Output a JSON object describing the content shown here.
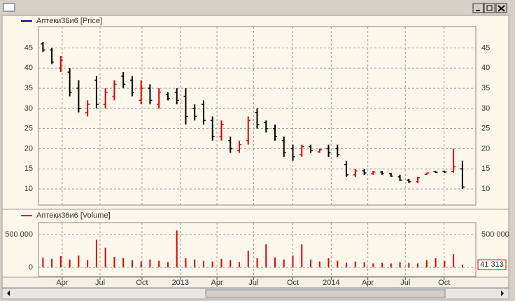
{
  "chart_data": [
    {
      "type": "ohlc",
      "series": [
        {
          "name": "Аптеки36и6 [Price]",
          "color": "#000080",
          "open": [
            46,
            44.5,
            40,
            39,
            35,
            29,
            37,
            31,
            33,
            38,
            37,
            32,
            35,
            31,
            33.5,
            34,
            33,
            30,
            31,
            27,
            23,
            22,
            19.5,
            22,
            29,
            26.5,
            25,
            22,
            20,
            18.5,
            20.5,
            19.2,
            20,
            20,
            16,
            13.5,
            14.5,
            13.8,
            14.2,
            13.8,
            13,
            12.2,
            11.8,
            13.6,
            14.3,
            14.4,
            14.3,
            15
          ],
          "high": [
            46.5,
            45,
            43,
            40,
            37,
            32,
            38,
            35,
            37,
            39,
            38,
            37,
            36,
            35,
            34,
            35,
            35,
            31,
            32,
            28,
            27,
            23,
            22,
            28,
            30,
            27,
            26,
            23,
            21,
            21,
            21,
            20,
            21,
            21,
            17,
            15,
            15,
            14.5,
            14.5,
            14,
            13.5,
            12.5,
            13,
            14,
            14.5,
            14.5,
            20,
            17
          ],
          "low": [
            44,
            41,
            39,
            33,
            29,
            28,
            30,
            30,
            32,
            35,
            33,
            31,
            31,
            30,
            32,
            31,
            26,
            27,
            26,
            22,
            22,
            19,
            19,
            21,
            25,
            24,
            22,
            18,
            17,
            18,
            19,
            19,
            18,
            18,
            13,
            13,
            13.5,
            13.5,
            13.5,
            13,
            12,
            11.5,
            11.5,
            13.5,
            14,
            14,
            14,
            10
          ],
          "close": [
            44.5,
            41.5,
            42,
            34,
            30,
            31,
            31,
            34,
            36,
            36,
            34,
            35,
            32,
            34,
            32.5,
            32,
            28,
            28,
            27,
            23,
            26,
            20,
            21,
            27,
            26,
            25,
            23,
            19,
            18,
            20.5,
            19.5,
            19.8,
            19,
            18.5,
            13.5,
            14.5,
            14,
            14.2,
            13.8,
            13.2,
            12.2,
            11.8,
            12.8,
            14,
            14.1,
            14.2,
            15.5,
            10.5
          ]
        }
      ],
      "up_color": "#e00000",
      "down_color": "#000000",
      "xlim": [
        -0.5,
        48.5
      ],
      "xticks": [
        {
          "value": 2.16,
          "label": "Apr"
        },
        {
          "value": 6.4,
          "label": "Jul"
        },
        {
          "value": 11.1,
          "label": "Oct"
        },
        {
          "value": 15.4,
          "label": "2013"
        },
        {
          "value": 19.5,
          "label": "Apr"
        },
        {
          "value": 23.6,
          "label": "Jul"
        },
        {
          "value": 28.0,
          "label": "Oct"
        },
        {
          "value": 32.3,
          "label": "2014"
        },
        {
          "value": 36.4,
          "label": "Apr"
        },
        {
          "value": 40.6,
          "label": "Jul"
        },
        {
          "value": 44.95,
          "label": "Oct"
        }
      ],
      "ylim": [
        6,
        50.3
      ],
      "yticks": [
        10,
        15,
        20,
        25,
        30,
        35,
        40,
        45
      ],
      "grid": true
    },
    {
      "type": "bar",
      "series": [
        {
          "name": "Аптеки36и6 [Volume]",
          "color": "#e00000",
          "values": [
            150000,
            130000,
            170000,
            120000,
            180000,
            110000,
            420000,
            300000,
            160000,
            140000,
            110000,
            90000,
            120000,
            100000,
            80000,
            560000,
            140000,
            120000,
            100000,
            90000,
            130000,
            110000,
            80000,
            250000,
            140000,
            350000,
            150000,
            120000,
            180000,
            350000,
            120000,
            90000,
            140000,
            100000,
            70000,
            90000,
            80000,
            60000,
            70000,
            60000,
            80000,
            70000,
            60000,
            110000,
            140000,
            100000,
            200000,
            41313
          ]
        }
      ],
      "last_value_label": "41 313",
      "ylim": [
        -138000,
        680000
      ],
      "yticks": [
        0,
        {
          "value": 500000,
          "label": "500 000"
        }
      ],
      "grid": true
    }
  ]
}
